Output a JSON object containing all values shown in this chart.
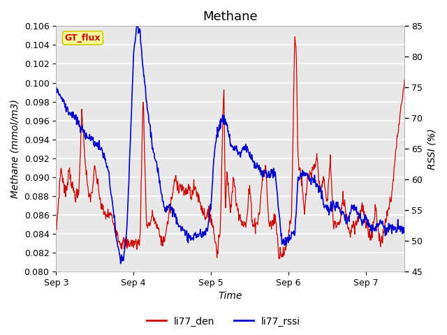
{
  "title": "Methane",
  "ylabel_left": "Methane (mmol/m3)",
  "ylabel_right": "RSSI (%)",
  "xlabel": "Time",
  "ylim_left": [
    0.08,
    0.106
  ],
  "ylim_right": [
    45,
    85
  ],
  "yticks_left": [
    0.08,
    0.082,
    0.084,
    0.086,
    0.088,
    0.09,
    0.092,
    0.094,
    0.096,
    0.098,
    0.1,
    0.102,
    0.104,
    0.106
  ],
  "yticks_right": [
    45,
    50,
    55,
    60,
    65,
    70,
    75,
    80,
    85
  ],
  "xtick_labels": [
    "Sep 3",
    "Sep 4",
    "Sep 5",
    "Sep 6",
    "Sep 7"
  ],
  "color_red": "#cc0000",
  "color_blue": "#0000cc",
  "legend_label_red": "li77_den",
  "legend_label_blue": "li77_rssi",
  "gt_flux_label": "GT_flux",
  "gt_flux_bg": "#ffff99",
  "gt_flux_border": "#cccc00",
  "plot_bg_color": "#e8e8e8",
  "grid_color": "#ffffff",
  "title_fontsize": 13,
  "axis_label_fontsize": 10,
  "tick_fontsize": 9
}
